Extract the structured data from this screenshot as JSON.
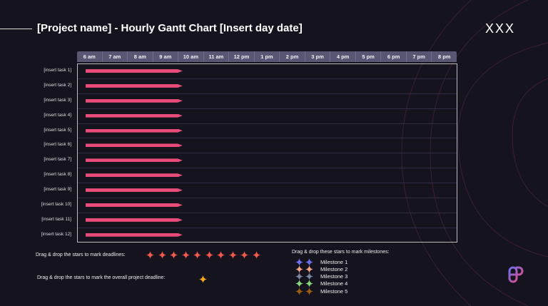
{
  "header": {
    "title": "[Project name] - Hourly Gantt Chart [Insert day date]",
    "decoration": "XXX"
  },
  "hours": [
    "6 am",
    "7 am",
    "8 am",
    "9 am",
    "10 am",
    "11 am",
    "12 pm",
    "1 pm",
    "2 pm",
    "3 pm",
    "4 pm",
    "5 pm",
    "6 pm",
    "7 pm",
    "8 pm"
  ],
  "tasks": [
    {
      "label": "[insert task 1]",
      "start": "6 am",
      "end": "10 am"
    },
    {
      "label": "[insert task 2]",
      "start": "6 am",
      "end": "10 am"
    },
    {
      "label": "[insert task 3]",
      "start": "6 am",
      "end": "10 am"
    },
    {
      "label": "[insert task 4]",
      "start": "6 am",
      "end": "10 am"
    },
    {
      "label": "[insert task 5]",
      "start": "6 am",
      "end": "10 am"
    },
    {
      "label": "[insert task 6]",
      "start": "6 am",
      "end": "10 am"
    },
    {
      "label": "[insert task 7]",
      "start": "6 am",
      "end": "10 am"
    },
    {
      "label": "[insert task 8]",
      "start": "6 am",
      "end": "10 am"
    },
    {
      "label": "[insert task 9]",
      "start": "6 am",
      "end": "10 am"
    },
    {
      "label": "[insert task 10]",
      "start": "6 am",
      "end": "10 am"
    },
    {
      "label": "[insert task 11]",
      "start": "6 am",
      "end": "10 am"
    },
    {
      "label": "[insert task 12]",
      "start": "6 am",
      "end": "10 am"
    }
  ],
  "deadlines": {
    "label": "Drag & drop the stars to mark deadlines:",
    "count": 10,
    "color": "#f25a4f"
  },
  "project_deadline": {
    "label": "Drag & drop the stars to mark the overall project deadline:",
    "color": "#f5a623"
  },
  "milestones": {
    "label": "Drag & drop these stars to mark milestones:",
    "items": [
      {
        "name": "Milestone 1",
        "color": "#6b6ff0"
      },
      {
        "name": "Milestone 2",
        "color": "#f5a582"
      },
      {
        "name": "Milestone 3",
        "color": "#7a86a0"
      },
      {
        "name": "Milestone 4",
        "color": "#86d67a"
      },
      {
        "name": "Milestone 5",
        "color": "#9a5e10"
      }
    ]
  },
  "colors": {
    "bar": "#ea4c79",
    "background": "#15131e",
    "header": "#585673"
  }
}
